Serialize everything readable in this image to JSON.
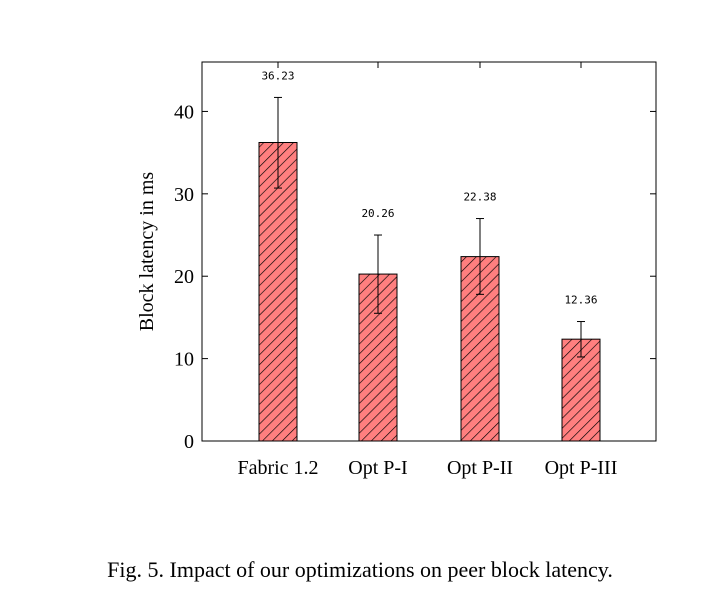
{
  "chart_data": {
    "type": "bar",
    "categories": [
      "Fabric 1.2",
      "Opt P-I",
      "Opt P-II",
      "Opt P-III"
    ],
    "values": [
      36.23,
      20.26,
      22.38,
      12.36
    ],
    "value_labels": [
      "36.23",
      "20.26",
      "22.38",
      "12.36"
    ],
    "error_low": [
      30.7,
      15.5,
      17.8,
      10.2
    ],
    "error_high": [
      41.7,
      25.0,
      27.0,
      14.5
    ],
    "ylabel": "Block latency in ms",
    "ylim": [
      0,
      46
    ],
    "yticks": [
      0,
      10,
      20,
      30,
      40
    ],
    "bar_fill": "#ff7f7f",
    "bar_hatch": "diagonal",
    "grid": false
  },
  "caption": "Fig. 5.  Impact of our optimizations on peer block latency."
}
